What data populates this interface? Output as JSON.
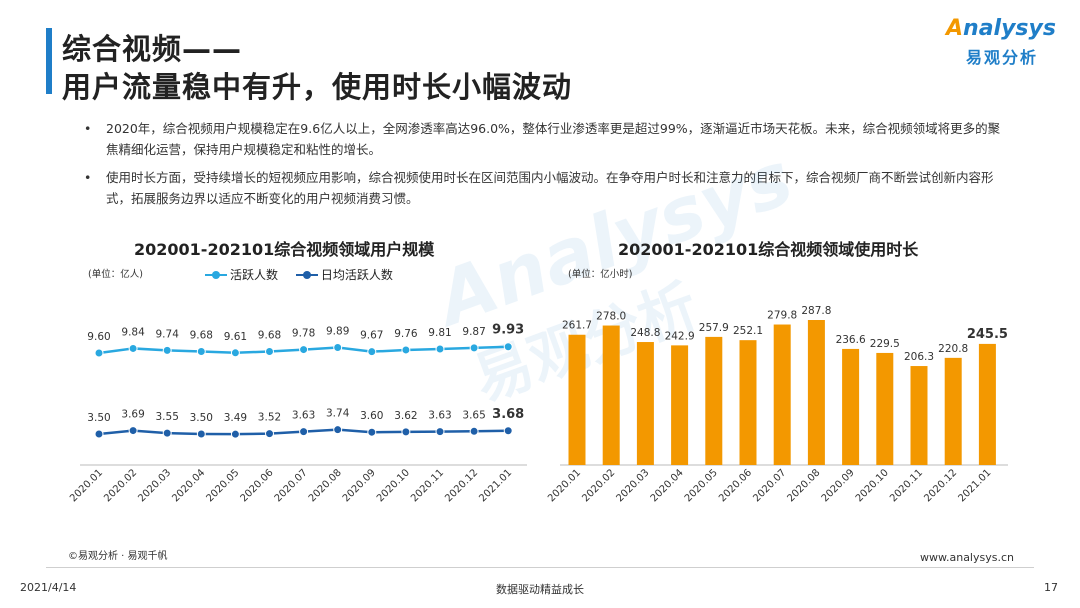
{
  "header": {
    "title_line1": "综合视频——",
    "title_line2": "用户流量稳中有升，使用时长小幅波动"
  },
  "logo": {
    "top_first": "A",
    "top_rest": "nalysys",
    "bottom": "易观分析"
  },
  "bullets": [
    "2020年，综合视频用户规模稳定在9.6亿人以上，全网渗透率高达96.0%，整体行业渗透率更是超过99%，逐渐逼近市场天花板。未来，综合视频领域将更多的聚焦精细化运营，保持用户规模稳定和粘性的增长。",
    "使用时长方面，受持续增长的短视频应用影响，综合视频使用时长在区间范围内小幅波动。在争夺用户时长和注意力的目标下，综合视频厂商不断尝试创新内容形式，拓展服务边界以适应不断变化的用户视频消费习惯。"
  ],
  "watermark": {
    "text1": "Analysys",
    "text2": "易观分析"
  },
  "colors": {
    "accent": "#1f7ec8",
    "line_light": "#29a8e0",
    "line_dark": "#1f5fa8",
    "bar": "#f39800"
  },
  "chart_data": [
    {
      "type": "line",
      "title": "202001-202101综合视频领域用户规模",
      "unit": "(单位：亿人)",
      "categories": [
        "2020.01",
        "2020.02",
        "2020.03",
        "2020.04",
        "2020.05",
        "2020.06",
        "2020.07",
        "2020.08",
        "2020.09",
        "2020.10",
        "2020.11",
        "2020.12",
        "2021.01"
      ],
      "series": [
        {
          "name": "活跃人数",
          "values": [
            9.6,
            9.84,
            9.74,
            9.68,
            9.61,
            9.68,
            9.78,
            9.89,
            9.67,
            9.76,
            9.81,
            9.87,
            9.93
          ],
          "labels": [
            "9.60",
            "9.84",
            "9.74",
            "9.68",
            "9.61",
            "9.68",
            "9.78",
            "9.89",
            "9.67",
            "9.76",
            "9.81",
            "9.87",
            "9.93"
          ],
          "color": "#29a8e0"
        },
        {
          "name": "日均活跃人数",
          "values": [
            3.5,
            3.69,
            3.55,
            3.5,
            3.49,
            3.52,
            3.63,
            3.74,
            3.6,
            3.62,
            3.63,
            3.65,
            3.68
          ],
          "labels": [
            "3.50",
            "3.69",
            "3.55",
            "3.50",
            "3.49",
            "3.52",
            "3.63",
            "3.74",
            "3.60",
            "3.62",
            "3.63",
            "3.65",
            "3.68"
          ],
          "color": "#1f5fa8"
        }
      ],
      "legend": "top-left",
      "grid": false
    },
    {
      "type": "bar",
      "title": "202001-202101综合视频领域使用时长",
      "unit": "(单位：亿小时)",
      "categories": [
        "2020.01",
        "2020.02",
        "2020.03",
        "2020.04",
        "2020.05",
        "2020.06",
        "2020.07",
        "2020.08",
        "2020.09",
        "2020.10",
        "2020.11",
        "2020.12",
        "2021.01"
      ],
      "values": [
        261.7,
        278.0,
        248.8,
        242.9,
        257.9,
        252.1,
        279.8,
        287.8,
        236.6,
        229.5,
        206.3,
        220.8,
        245.5
      ],
      "labels": [
        "261.7",
        "278.0",
        "248.8",
        "242.9",
        "257.9",
        "252.1",
        "279.8",
        "287.8",
        "236.6",
        "229.5",
        "206.3",
        "220.8",
        "245.5"
      ],
      "color": "#f39800",
      "grid": false
    }
  ],
  "footer": {
    "source": "©易观分析 · 易观千帆",
    "website": "www.analysys.cn",
    "date": "2021/4/14",
    "slogan": "数据驱动精益成长",
    "page": "17"
  }
}
